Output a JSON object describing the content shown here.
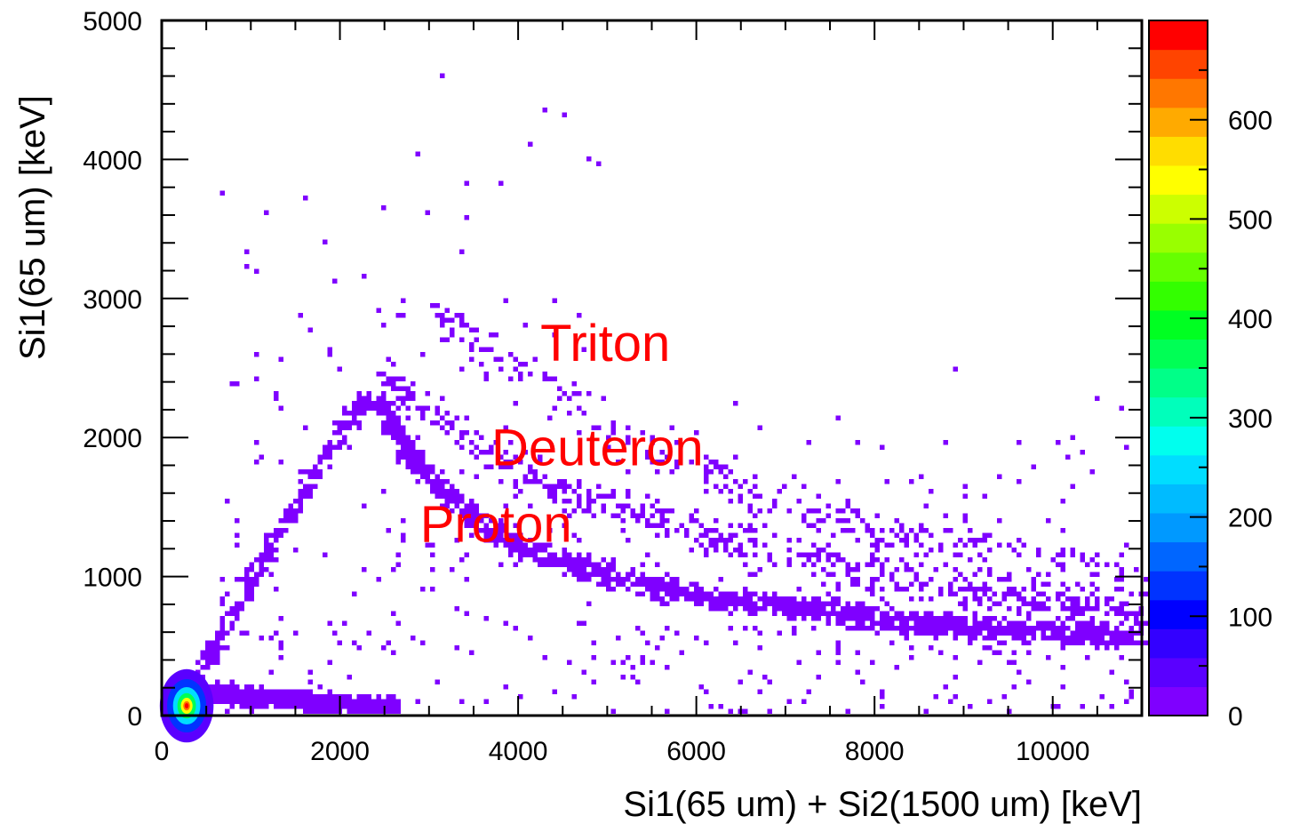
{
  "chart_data": {
    "type": "heatmap",
    "title": "",
    "xlabel": "Si1(65 um) + Si2(1500 um) [keV]",
    "ylabel": "Si1(65 um) [keV]",
    "xlim": [
      0,
      11000
    ],
    "ylim": [
      0,
      5000
    ],
    "x_ticks": [
      0,
      2000,
      4000,
      6000,
      8000,
      10000
    ],
    "y_ticks": [
      0,
      1000,
      2000,
      3000,
      4000,
      5000
    ],
    "x_tick_labels": [
      "0",
      "2000",
      "4000",
      "6000",
      "8000",
      "10000"
    ],
    "y_tick_labels": [
      "0",
      "1000",
      "2000",
      "3000",
      "4000",
      "5000"
    ],
    "colorbar": {
      "range": [
        0,
        700
      ],
      "ticks": [
        0,
        100,
        200,
        300,
        400,
        500,
        600
      ],
      "tick_labels": [
        "0",
        "100",
        "200",
        "300",
        "400",
        "500",
        "600"
      ],
      "colors": [
        "#7f00ff",
        "#5a00ff",
        "#3300ff",
        "#0000ff",
        "#0033ff",
        "#0066ff",
        "#0099ff",
        "#00bbff",
        "#00ddff",
        "#00ffee",
        "#00ffbb",
        "#00ff88",
        "#00ff55",
        "#00ff22",
        "#33ff00",
        "#66ff00",
        "#99ff00",
        "#ccff00",
        "#ffff00",
        "#ffdd00",
        "#ffaa00",
        "#ff7700",
        "#ff4400",
        "#ff0000"
      ]
    },
    "grid": false,
    "annotations": [
      {
        "text": "Triton",
        "x": 4250,
        "y": 2550
      },
      {
        "text": "Deuteron",
        "x": 3700,
        "y": 1800
      },
      {
        "text": "Proton",
        "x": 2900,
        "y": 1250
      }
    ],
    "bands": [
      {
        "name": "proton",
        "points": [
          [
            2400,
            2250
          ],
          [
            2600,
            2050
          ],
          [
            2800,
            1850
          ],
          [
            3000,
            1700
          ],
          [
            3300,
            1500
          ],
          [
            3600,
            1350
          ],
          [
            4000,
            1200
          ],
          [
            4500,
            1080
          ],
          [
            5000,
            980
          ],
          [
            5500,
            900
          ],
          [
            6000,
            850
          ],
          [
            6500,
            800
          ],
          [
            7000,
            760
          ],
          [
            7500,
            720
          ],
          [
            8000,
            680
          ],
          [
            8500,
            650
          ],
          [
            9000,
            620
          ],
          [
            9500,
            600
          ],
          [
            10000,
            580
          ],
          [
            10500,
            560
          ],
          [
            11000,
            550
          ]
        ],
        "width": 90,
        "density": 1.0
      },
      {
        "name": "deuteron",
        "points": [
          [
            2500,
            2350
          ],
          [
            2800,
            2250
          ],
          [
            3100,
            2100
          ],
          [
            3500,
            1950
          ],
          [
            4000,
            1750
          ],
          [
            4500,
            1600
          ],
          [
            5000,
            1500
          ],
          [
            5500,
            1400
          ],
          [
            6000,
            1300
          ],
          [
            6500,
            1220
          ],
          [
            7000,
            1150
          ],
          [
            7500,
            1080
          ],
          [
            8000,
            1000
          ],
          [
            8500,
            950
          ],
          [
            9000,
            900
          ],
          [
            9500,
            850
          ],
          [
            10000,
            800
          ],
          [
            10500,
            770
          ],
          [
            11000,
            740
          ]
        ],
        "width": 150,
        "density": 0.35
      },
      {
        "name": "triton",
        "points": [
          [
            3000,
            2900
          ],
          [
            3300,
            2800
          ],
          [
            3700,
            2600
          ],
          [
            4200,
            2400
          ],
          [
            4800,
            2150
          ],
          [
            5300,
            1950
          ],
          [
            6000,
            1750
          ],
          [
            6500,
            1600
          ],
          [
            7000,
            1500
          ],
          [
            7500,
            1400
          ],
          [
            8000,
            1300
          ],
          [
            8500,
            1250
          ],
          [
            9000,
            1200
          ],
          [
            9500,
            1150
          ],
          [
            10000,
            1100
          ],
          [
            10500,
            1050
          ],
          [
            11000,
            1000
          ]
        ],
        "width": 180,
        "density": 0.18
      },
      {
        "name": "punch-through",
        "points": [
          [
            300,
            200
          ],
          [
            600,
            500
          ],
          [
            900,
            850
          ],
          [
            1200,
            1200
          ],
          [
            1500,
            1500
          ],
          [
            1800,
            1850
          ],
          [
            2100,
            2100
          ],
          [
            2300,
            2300
          ]
        ],
        "width": 80,
        "density": 0.2
      },
      {
        "name": "low-energy",
        "points": [
          [
            200,
            100
          ],
          [
            700,
            130
          ],
          [
            1200,
            110
          ],
          [
            1700,
            90
          ],
          [
            2200,
            60
          ],
          [
            2600,
            40
          ]
        ],
        "width": 70,
        "density": 0.6
      }
    ],
    "hotspot": {
      "x": 280,
      "y": 70,
      "peak": 690
    }
  }
}
